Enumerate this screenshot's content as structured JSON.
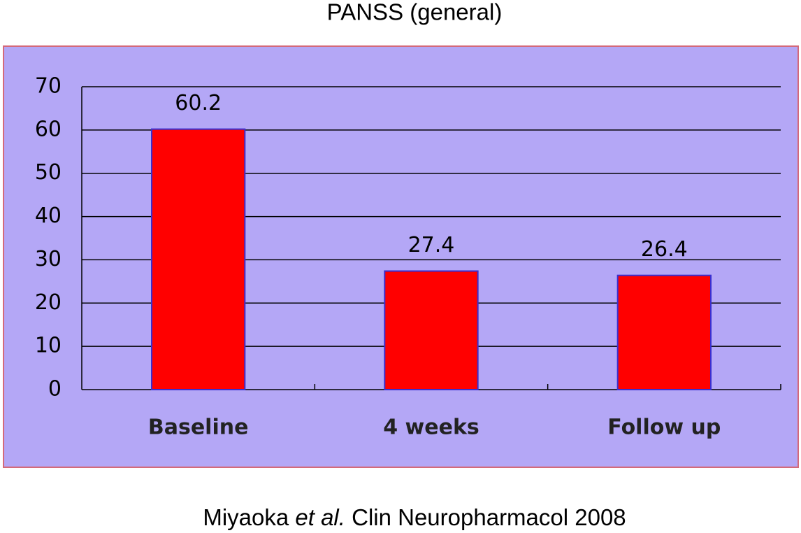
{
  "chart_data": {
    "type": "bar",
    "title": "PANSS (general)",
    "categories": [
      "Baseline",
      "4 weeks",
      "Follow up"
    ],
    "values": [
      60.2,
      27.4,
      26.4
    ],
    "color": "#ff0000",
    "edgecolor": "#3a2fd0",
    "ylim": [
      0,
      70
    ],
    "yticks": [
      0,
      10,
      20,
      30,
      40,
      50,
      60,
      70
    ],
    "grid": true
  },
  "caption": {
    "author": "Miyaoka",
    "etal": "et al.",
    "rest": "Clin Neuropharmacol 2008"
  }
}
